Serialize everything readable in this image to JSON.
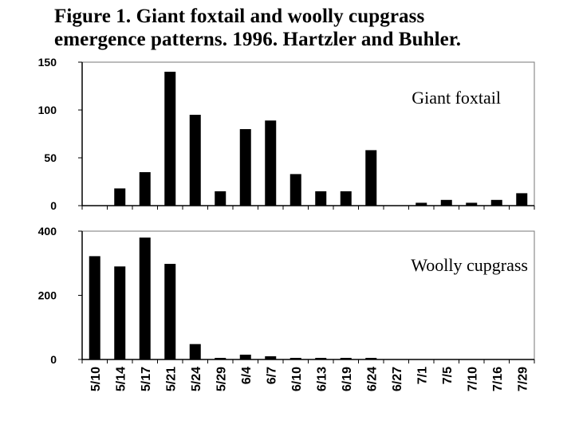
{
  "title": {
    "line1": "Figure 1.  Giant foxtail and woolly cupgrass",
    "line2": "emergence patterns.  1996.  Hartzler and Buhler."
  },
  "chart_data": [
    {
      "type": "bar",
      "series_label": "Giant foxtail",
      "categories": [
        "5/10",
        "5/14",
        "5/17",
        "5/21",
        "5/24",
        "5/29",
        "6/4",
        "6/7",
        "6/10",
        "6/13",
        "6/19",
        "6/24",
        "6/27",
        "7/1",
        "7/5",
        "7/10",
        "7/16",
        "7/29"
      ],
      "values": [
        0,
        18,
        35,
        140,
        95,
        15,
        80,
        89,
        33,
        15,
        15,
        58,
        0,
        3,
        6,
        3,
        6,
        13
      ],
      "ylim": [
        0,
        150
      ],
      "yticks": [
        0,
        50,
        100,
        150
      ],
      "bar_color": "#000000"
    },
    {
      "type": "bar",
      "series_label": "Woolly cupgrass",
      "categories": [
        "5/10",
        "5/14",
        "5/17",
        "5/21",
        "5/24",
        "5/29",
        "6/4",
        "6/7",
        "6/10",
        "6/13",
        "6/19",
        "6/24",
        "6/27",
        "7/1",
        "7/5",
        "7/10",
        "7/16",
        "7/29"
      ],
      "values": [
        322,
        290,
        380,
        298,
        48,
        5,
        15,
        10,
        5,
        5,
        5,
        5,
        0,
        0,
        0,
        0,
        0,
        0
      ],
      "ylim": [
        0,
        400
      ],
      "yticks": [
        0,
        200,
        400
      ],
      "bar_color": "#000000"
    }
  ]
}
